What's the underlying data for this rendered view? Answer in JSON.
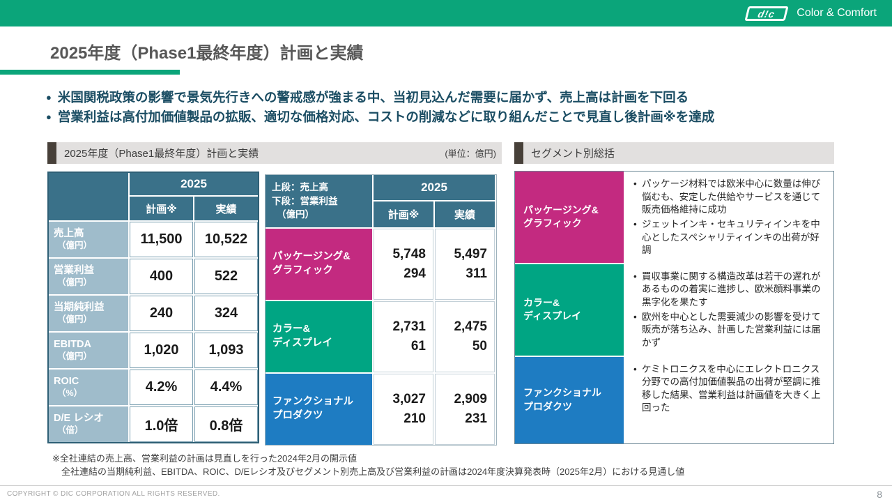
{
  "brand": {
    "logo_text": "d!c",
    "tagline": "Color & Comfort",
    "bar_color": "#0ba57a"
  },
  "title": "2025年度（Phase1最終年度）計画と実績",
  "key_messages": [
    "米国関税政策の影響で景気先行きへの警戒感が強まる中、当初見込んだ需要に届かず、売上高は計画を下回る",
    "営業利益は高付加価値製品の拡販、適切な価格対応、コストの削減などに取り組んだことで見直し後計画※を達成"
  ],
  "left_panel": {
    "header": "2025年度（Phase1最終年度）計画と実績",
    "unit": "(単位：億円)",
    "table": {
      "year": "2025",
      "col_plan": "計画※",
      "col_actual": "実績",
      "rows": [
        {
          "label": "売上高",
          "sub": "（億円）",
          "plan": "11,500",
          "actual": "10,522"
        },
        {
          "label": "営業利益",
          "sub": "（億円）",
          "plan": "400",
          "actual": "522"
        },
        {
          "label": "当期純利益",
          "sub": "（億円）",
          "plan": "240",
          "actual": "324"
        },
        {
          "label": "EBITDA",
          "sub": "（億円）",
          "plan": "1,020",
          "actual": "1,093"
        },
        {
          "label": "ROIC",
          "sub": "（%）",
          "plan": "4.2%",
          "actual": "4.4%"
        },
        {
          "label": "D/E レシオ",
          "sub": "（倍）",
          "plan": "1.0倍",
          "actual": "0.8倍"
        }
      ]
    }
  },
  "segment_table": {
    "corner_line1": "上段：売上高",
    "corner_line2": "下段：営業利益",
    "corner_line3": "（億円）",
    "year": "2025",
    "col_plan": "計画※",
    "col_actual": "実績",
    "rows": [
      {
        "name1": "パッケージング&",
        "name2": "グラフィック",
        "color": "#c32a80",
        "plan_sales": "5,748",
        "plan_profit": "294",
        "actual_sales": "5,497",
        "actual_profit": "311"
      },
      {
        "name1": "カラー&",
        "name2": "ディスプレイ",
        "color": "#00a583",
        "plan_sales": "2,731",
        "plan_profit": "61",
        "actual_sales": "2,475",
        "actual_profit": "50"
      },
      {
        "name1": "ファンクショナル",
        "name2": "プロダクツ",
        "color": "#1e7cc2",
        "plan_sales": "3,027",
        "plan_profit": "210",
        "actual_sales": "2,909",
        "actual_profit": "231"
      }
    ]
  },
  "right_panel": {
    "header": "セグメント別総括",
    "rows": [
      {
        "name1": "パッケージング&",
        "name2": "グラフィック",
        "color": "#c32a80",
        "bullets": [
          "パッケージ材料では欧米中心に数量は伸び悩むも、安定した供給やサービスを通じて販売価格維持に成功",
          "ジェットインキ・セキュリティインキを中心としたスペシャリティインキの出荷が好調"
        ]
      },
      {
        "name1": "カラー&",
        "name2": "ディスプレイ",
        "color": "#00a583",
        "bullets": [
          "買収事業に関する構造改革は若干の遅れがあるものの着実に進捗し、欧米顔料事業の黒字化を果たす",
          "欧州を中心とした需要減少の影響を受けて販売が落ち込み、計画した営業利益には届かず"
        ]
      },
      {
        "name1": "ファンクショナル",
        "name2": "プロダクツ",
        "color": "#1e7cc2",
        "bullets": [
          "ケミトロニクスを中心にエレクトロニクス分野での高付加価値製品の出荷が堅調に推移した結果、営業利益は計画値を大きく上回った"
        ]
      }
    ]
  },
  "footnotes": [
    "※全社連結の売上高、営業利益の計画は見直しを行った2024年2月の開示値",
    "全社連結の当期純利益、EBITDA、ROIC、D/Eレシオ及びセグメント別売上高及び営業利益の計画は2024年度決算発表時（2025年2月）における見通し値"
  ],
  "footer": {
    "copyright": "COPYRIGHT © DIC CORPORATION ALL RIGHTS RESERVED.",
    "page": "8"
  }
}
